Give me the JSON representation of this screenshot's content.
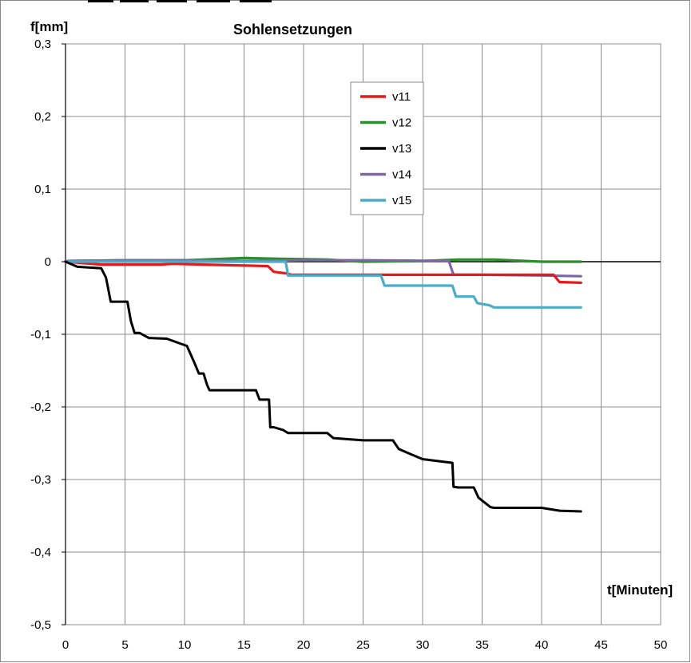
{
  "chart_data": {
    "type": "line",
    "title": "Sohlensetzungen",
    "xlabel": "t[Minuten]",
    "ylabel": "f[mm]",
    "xlim": [
      0,
      50
    ],
    "ylim": [
      -0.5,
      0.3
    ],
    "xticks": [
      0,
      5,
      10,
      15,
      20,
      25,
      30,
      35,
      40,
      45,
      50
    ],
    "yticks": [
      0.3,
      0.2,
      0.1,
      0,
      -0.1,
      -0.2,
      -0.3,
      -0.4,
      -0.5
    ],
    "xtick_labels": [
      "0",
      "5",
      "10",
      "15",
      "20",
      "25",
      "30",
      "35",
      "40",
      "45",
      "50"
    ],
    "ytick_labels": [
      "0,3",
      "0,2",
      "0,1",
      "0",
      "-0,1",
      "-0,2",
      "-0,3",
      "-0,4",
      "-0,5"
    ],
    "grid": true,
    "legend_position": "top-center",
    "series": [
      {
        "name": "v11",
        "color": "#e41a1c",
        "x": [
          0,
          3,
          8,
          9,
          17,
          17.5,
          18.5,
          19,
          41,
          41.5,
          43.3
        ],
        "y": [
          0,
          -0.004,
          -0.004,
          -0.003,
          -0.006,
          -0.014,
          -0.016,
          -0.018,
          -0.018,
          -0.028,
          -0.029
        ]
      },
      {
        "name": "v12",
        "color": "#2e8b2e",
        "x": [
          0,
          5,
          10,
          15,
          18,
          22,
          25,
          30,
          33,
          36,
          40,
          43.3
        ],
        "y": [
          0.001,
          0.002,
          0.002,
          0.005,
          0.004,
          0.003,
          0.0,
          0.001,
          0.003,
          0.003,
          0.0,
          0.0
        ]
      },
      {
        "name": "v13",
        "color": "#000000",
        "x": [
          0,
          1,
          3,
          3.4,
          3.8,
          5.2,
          5.5,
          5.8,
          6.2,
          7,
          8.5,
          9.5,
          10.2,
          10.8,
          11.2,
          11.6,
          11.9,
          12.1,
          13,
          16,
          16.3,
          17.1,
          17.2,
          17.5,
          18.3,
          18.7,
          21,
          22,
          22.5,
          25,
          27.5,
          28,
          29,
          30,
          32.5,
          32.6,
          33,
          34.3,
          34.7,
          35.7,
          36,
          40,
          41.5,
          43.3
        ],
        "y": [
          0,
          -0.007,
          -0.009,
          -0.022,
          -0.055,
          -0.055,
          -0.082,
          -0.098,
          -0.098,
          -0.105,
          -0.106,
          -0.112,
          -0.116,
          -0.138,
          -0.154,
          -0.154,
          -0.17,
          -0.177,
          -0.177,
          -0.177,
          -0.19,
          -0.19,
          -0.228,
          -0.228,
          -0.232,
          -0.236,
          -0.236,
          -0.236,
          -0.243,
          -0.246,
          -0.246,
          -0.258,
          -0.265,
          -0.272,
          -0.277,
          -0.31,
          -0.311,
          -0.311,
          -0.325,
          -0.338,
          -0.339,
          -0.339,
          -0.343,
          -0.344
        ]
      },
      {
        "name": "v14",
        "color": "#7f65a8",
        "x": [
          0,
          5,
          10,
          15,
          20,
          25,
          32.2,
          32.6,
          35,
          40,
          43.3
        ],
        "y": [
          0.001,
          0.002,
          0.002,
          0.001,
          0.002,
          0.002,
          0.001,
          -0.018,
          -0.018,
          -0.019,
          -0.02
        ]
      },
      {
        "name": "v15",
        "color": "#4aacc6",
        "x": [
          0,
          18.5,
          18.7,
          26.5,
          26.8,
          32.5,
          32.8,
          34.3,
          34.6,
          35.6,
          36,
          43.3
        ],
        "y": [
          0,
          0,
          -0.019,
          -0.019,
          -0.033,
          -0.033,
          -0.048,
          -0.048,
          -0.057,
          -0.06,
          -0.063,
          -0.063
        ]
      }
    ]
  }
}
